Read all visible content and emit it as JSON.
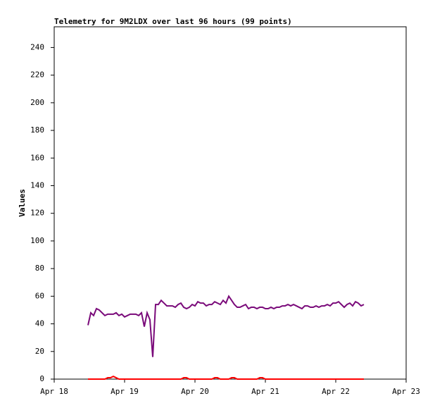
{
  "chart_data": {
    "type": "line",
    "title": "Telemetry for 9M2LDX over last 96 hours (99 points)",
    "ylabel": "Values",
    "xlim": [
      18,
      23
    ],
    "xticks": [
      {
        "value": 18,
        "label": "Apr 18"
      },
      {
        "value": 19,
        "label": "Apr 19"
      },
      {
        "value": 20,
        "label": "Apr 20"
      },
      {
        "value": 21,
        "label": "Apr 21"
      },
      {
        "value": 22,
        "label": "Apr 22"
      },
      {
        "value": 23,
        "label": "Apr 23"
      }
    ],
    "ylim": [
      0,
      255
    ],
    "yticks": [
      0,
      20,
      40,
      60,
      80,
      100,
      120,
      140,
      160,
      180,
      200,
      220,
      240
    ],
    "x": [
      18.48,
      18.52,
      18.56,
      18.6,
      18.64,
      18.68,
      18.72,
      18.76,
      18.8,
      18.84,
      18.88,
      18.92,
      18.96,
      19.0,
      19.04,
      19.08,
      19.12,
      19.16,
      19.2,
      19.24,
      19.28,
      19.32,
      19.36,
      19.4,
      19.44,
      19.48,
      19.52,
      19.56,
      19.6,
      19.64,
      19.68,
      19.72,
      19.76,
      19.8,
      19.84,
      19.88,
      19.92,
      19.96,
      20.0,
      20.04,
      20.08,
      20.12,
      20.16,
      20.2,
      20.24,
      20.28,
      20.32,
      20.36,
      20.4,
      20.44,
      20.48,
      20.52,
      20.56,
      20.6,
      20.64,
      20.68,
      20.72,
      20.76,
      20.8,
      20.84,
      20.88,
      20.92,
      20.96,
      21.0,
      21.04,
      21.08,
      21.12,
      21.16,
      21.2,
      21.24,
      21.28,
      21.32,
      21.36,
      21.4,
      21.44,
      21.48,
      21.52,
      21.56,
      21.6,
      21.64,
      21.68,
      21.72,
      21.76,
      21.8,
      21.84,
      21.88,
      21.92,
      21.96,
      22.0,
      22.04,
      22.08,
      22.12,
      22.16,
      22.2,
      22.24,
      22.28,
      22.32,
      22.36,
      22.4
    ],
    "series": [
      {
        "color": "#7a0a7a",
        "values": [
          39,
          48,
          46,
          51,
          50,
          48,
          46,
          47,
          47,
          47,
          48,
          46,
          47,
          45,
          46,
          47,
          47,
          47,
          46,
          48,
          38,
          48,
          43,
          16,
          54,
          54,
          57,
          55,
          53,
          53,
          53,
          52,
          54,
          55,
          52,
          51,
          52,
          54,
          53,
          56,
          55,
          55,
          53,
          54,
          54,
          56,
          55,
          54,
          57,
          55,
          60,
          57,
          54,
          52,
          52,
          53,
          54,
          51,
          52,
          52,
          51,
          52,
          52,
          51,
          51,
          52,
          51,
          52,
          52,
          53,
          53,
          54,
          53,
          54,
          53,
          52,
          51,
          53,
          53,
          52,
          52,
          53,
          52,
          53,
          53,
          54,
          53,
          55,
          55,
          56,
          54,
          52,
          54,
          55,
          53,
          56,
          55,
          53,
          54
        ]
      },
      {
        "color": "#ff0000",
        "values": [
          0,
          0,
          0,
          0,
          0,
          0,
          0,
          1,
          1,
          2,
          1,
          0,
          0,
          0,
          0,
          0,
          0,
          0,
          0,
          0,
          0,
          0,
          0,
          0,
          0,
          0,
          0,
          0,
          0,
          0,
          0,
          0,
          0,
          0,
          1,
          1,
          0,
          0,
          0,
          0,
          0,
          0,
          0,
          0,
          0,
          1,
          1,
          0,
          0,
          0,
          0,
          1,
          1,
          0,
          0,
          0,
          0,
          0,
          0,
          0,
          0,
          1,
          1,
          0,
          0,
          0,
          0,
          0,
          0,
          0,
          0,
          0,
          0,
          0,
          0,
          0,
          0,
          0,
          0,
          0,
          0,
          0,
          0,
          0,
          0,
          0,
          0,
          0,
          0,
          0,
          0,
          0,
          0,
          0,
          0,
          0,
          0,
          0,
          0
        ]
      }
    ]
  }
}
